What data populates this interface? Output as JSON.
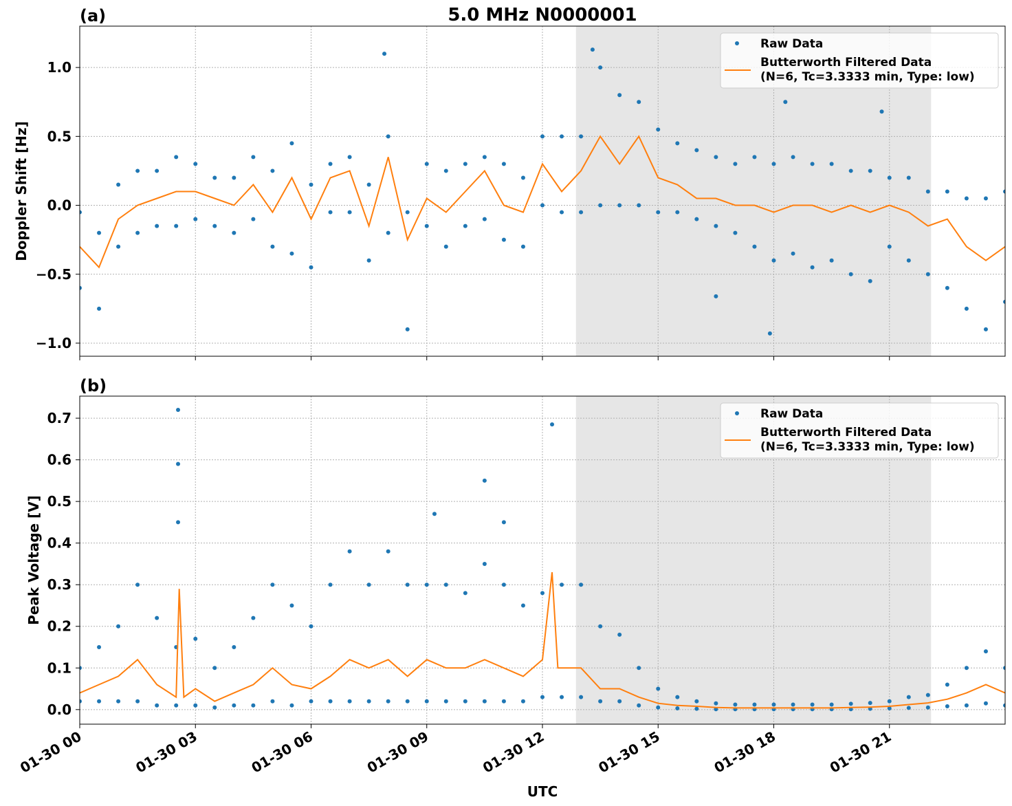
{
  "chart_data": [
    {
      "type": "line",
      "title": "5.0 MHz N0000001",
      "panel_label": "(a)",
      "ylabel": "Doppler Shift [Hz]",
      "xlim": [
        0,
        24
      ],
      "xticks": [
        0,
        3,
        6,
        9,
        12,
        15,
        18,
        21
      ],
      "ylim": [
        -1.095,
        1.3
      ],
      "yticks": [
        {
          "value": -1,
          "label": "−1.0"
        },
        {
          "value": -0.5,
          "label": "−0.5"
        },
        {
          "value": 0,
          "label": "0.0"
        },
        {
          "value": 0.5,
          "label": "0.5"
        },
        {
          "value": 1,
          "label": "1.0"
        }
      ],
      "grid": true,
      "legend": "upper right",
      "shaded_span": [
        12.87,
        22.08
      ],
      "series": [
        {
          "name": "Raw Data",
          "style": "scatter",
          "color": "#1f77b4",
          "x": [
            0,
            0.5,
            1,
            1.5,
            2,
            2.5,
            3,
            3.5,
            4,
            4.5,
            5,
            5.5,
            6,
            6.5,
            7,
            7.5,
            8,
            8.5,
            9,
            9.5,
            10,
            10.5,
            11,
            11.5,
            12,
            12.5,
            13,
            13.5,
            14,
            14.5,
            15,
            15.5,
            16,
            16.5,
            17,
            17.5,
            18,
            18.5,
            19,
            19.5,
            20,
            20.5,
            21,
            21.5,
            22,
            22.5,
            23,
            23.5,
            24,
            0,
            0.5,
            1,
            1.5,
            2,
            2.5,
            3,
            3.5,
            4,
            4.5,
            5,
            5.5,
            6,
            6.5,
            7,
            7.5,
            8,
            8.5,
            9,
            9.5,
            10,
            10.5,
            11,
            11.5,
            12,
            12.5,
            13,
            13.5,
            14,
            14.5,
            15,
            15.5,
            16,
            16.5,
            17,
            17.5,
            18,
            18.5,
            19,
            19.5,
            20,
            20.5,
            21,
            21.5,
            22,
            22.5,
            23,
            23.5,
            24,
            7.9,
            13.3,
            17.9,
            20.8,
            16.5,
            18.3
          ],
          "values": [
            -0.05,
            -0.2,
            0.15,
            0.25,
            0.25,
            0.35,
            0.3,
            0.2,
            0.2,
            0.35,
            0.25,
            0.45,
            0.15,
            0.3,
            0.35,
            0.15,
            0.5,
            -0.05,
            0.3,
            0.25,
            0.3,
            0.35,
            0.3,
            0.2,
            0.5,
            0.5,
            0.5,
            1.0,
            0.8,
            0.75,
            0.55,
            0.45,
            0.4,
            0.35,
            0.3,
            0.35,
            0.3,
            0.35,
            0.3,
            0.3,
            0.25,
            0.25,
            0.2,
            0.2,
            0.1,
            0.1,
            0.05,
            0.05,
            0.1,
            -0.6,
            -0.75,
            -0.3,
            -0.2,
            -0.15,
            -0.15,
            -0.1,
            -0.15,
            -0.2,
            -0.1,
            -0.3,
            -0.35,
            -0.45,
            -0.05,
            -0.05,
            -0.4,
            -0.2,
            -0.9,
            -0.15,
            -0.3,
            -0.15,
            -0.1,
            -0.25,
            -0.3,
            0.0,
            -0.05,
            -0.05,
            0.0,
            0.0,
            0.0,
            -0.05,
            -0.05,
            -0.1,
            -0.15,
            -0.2,
            -0.3,
            -0.4,
            -0.35,
            -0.45,
            -0.4,
            -0.5,
            -0.55,
            -0.3,
            -0.4,
            -0.5,
            -0.6,
            -0.75,
            -0.9,
            -0.7,
            1.1,
            1.13,
            -0.93,
            0.68,
            -0.66,
            0.75
          ]
        },
        {
          "name": "Butterworth Filtered Data",
          "name_detail": "(N=6, Tc=3.3333 min, Type: low)",
          "style": "line",
          "color": "#ff7f0e",
          "x": [
            0,
            0.5,
            1,
            1.5,
            2,
            2.5,
            3,
            3.5,
            4,
            4.5,
            5,
            5.5,
            6,
            6.5,
            7,
            7.5,
            8,
            8.5,
            9,
            9.5,
            10,
            10.5,
            11,
            11.5,
            12,
            12.5,
            13,
            13.5,
            14,
            14.5,
            15,
            15.5,
            16,
            16.5,
            17,
            17.5,
            18,
            18.5,
            19,
            19.5,
            20,
            20.5,
            21,
            21.5,
            22,
            22.5,
            23,
            23.5,
            24
          ],
          "values": [
            -0.3,
            -0.45,
            -0.1,
            0.0,
            0.05,
            0.1,
            0.1,
            0.05,
            0.0,
            0.15,
            -0.05,
            0.2,
            -0.1,
            0.2,
            0.25,
            -0.15,
            0.35,
            -0.25,
            0.05,
            -0.05,
            0.1,
            0.25,
            0.0,
            -0.05,
            0.3,
            0.1,
            0.25,
            0.5,
            0.3,
            0.5,
            0.2,
            0.15,
            0.05,
            0.05,
            0.0,
            0.0,
            -0.05,
            0.0,
            0.0,
            -0.05,
            0.0,
            -0.05,
            0.0,
            -0.05,
            -0.15,
            -0.1,
            -0.3,
            -0.4,
            -0.3
          ]
        }
      ]
    },
    {
      "type": "line",
      "panel_label": "(b)",
      "ylabel": "Peak Voltage [V]",
      "xlabel": "UTC",
      "xlim": [
        0,
        24
      ],
      "xticks": [
        {
          "value": 0,
          "label": "01-30 00"
        },
        {
          "value": 3,
          "label": "01-30 03"
        },
        {
          "value": 6,
          "label": "01-30 06"
        },
        {
          "value": 9,
          "label": "01-30 09"
        },
        {
          "value": 12,
          "label": "01-30 12"
        },
        {
          "value": 15,
          "label": "01-30 15"
        },
        {
          "value": 18,
          "label": "01-30 18"
        },
        {
          "value": 21,
          "label": "01-30 21"
        }
      ],
      "ylim": [
        -0.035,
        0.753
      ],
      "yticks": [
        {
          "value": 0,
          "label": "0.0"
        },
        0.1,
        0.2,
        0.3,
        0.4,
        0.5,
        0.6,
        0.7
      ],
      "grid": true,
      "legend": "upper right",
      "shaded_span": [
        12.87,
        22.08
      ],
      "series": [
        {
          "name": "Raw Data",
          "style": "scatter",
          "color": "#1f77b4",
          "x": [
            0,
            0.5,
            1,
            1.5,
            2,
            2.5,
            3,
            3.5,
            4,
            4.5,
            5,
            5.5,
            6,
            6.5,
            7,
            7.5,
            8,
            8.5,
            9,
            9.5,
            10,
            10.5,
            11,
            11.5,
            12,
            12.5,
            13,
            13.5,
            14,
            14.5,
            15,
            15.5,
            16,
            16.5,
            17,
            17.5,
            18,
            18.5,
            19,
            19.5,
            20,
            20.5,
            21,
            21.5,
            22,
            22.5,
            23,
            23.5,
            24,
            0,
            0.5,
            1,
            1.5,
            2,
            2.5,
            3,
            3.5,
            4,
            4.5,
            5,
            5.5,
            6,
            6.5,
            7,
            7.5,
            8,
            8.5,
            9,
            9.5,
            10,
            10.5,
            11,
            11.5,
            12,
            12.5,
            13,
            13.5,
            14,
            14.5,
            15,
            15.5,
            16,
            16.5,
            17,
            17.5,
            18,
            18.5,
            19,
            19.5,
            20,
            20.5,
            21,
            21.5,
            22,
            22.5,
            23,
            23.5,
            24,
            2.55,
            2.55,
            2.55,
            12.25,
            10.5,
            9.2,
            11.0
          ],
          "values": [
            0.1,
            0.15,
            0.2,
            0.3,
            0.22,
            0.15,
            0.17,
            0.1,
            0.15,
            0.22,
            0.3,
            0.25,
            0.2,
            0.3,
            0.38,
            0.3,
            0.38,
            0.3,
            0.3,
            0.3,
            0.28,
            0.35,
            0.3,
            0.25,
            0.28,
            0.3,
            0.3,
            0.2,
            0.18,
            0.1,
            0.05,
            0.03,
            0.02,
            0.015,
            0.012,
            0.012,
            0.012,
            0.012,
            0.012,
            0.012,
            0.014,
            0.016,
            0.02,
            0.03,
            0.035,
            0.06,
            0.1,
            0.14,
            0.1,
            0.02,
            0.02,
            0.02,
            0.02,
            0.01,
            0.01,
            0.01,
            0.005,
            0.01,
            0.01,
            0.02,
            0.01,
            0.02,
            0.02,
            0.02,
            0.02,
            0.02,
            0.02,
            0.02,
            0.02,
            0.02,
            0.02,
            0.02,
            0.02,
            0.03,
            0.03,
            0.03,
            0.02,
            0.02,
            0.01,
            0.005,
            0.003,
            0.002,
            0.001,
            0.001,
            0.001,
            0.001,
            0.001,
            0.001,
            0.001,
            0.001,
            0.002,
            0.003,
            0.004,
            0.005,
            0.008,
            0.01,
            0.015,
            0.01,
            0.72,
            0.59,
            0.45,
            0.685,
            0.55,
            0.47,
            0.45
          ]
        },
        {
          "name": "Butterworth Filtered Data",
          "name_detail": "(N=6, Tc=3.3333 min, Type: low)",
          "style": "line",
          "color": "#ff7f0e",
          "x": [
            0,
            0.5,
            1,
            1.5,
            2,
            2.5,
            2.58,
            2.7,
            3,
            3.5,
            4,
            4.5,
            5,
            5.5,
            6,
            6.5,
            7,
            7.5,
            8,
            8.5,
            9,
            9.5,
            10,
            10.5,
            11,
            11.5,
            12,
            12.25,
            12.4,
            12.5,
            13,
            13.5,
            14,
            14.5,
            15,
            15.5,
            16,
            16.5,
            17,
            17.5,
            18,
            18.5,
            19,
            19.5,
            20,
            20.5,
            21,
            21.5,
            22,
            22.5,
            23,
            23.5,
            24
          ],
          "values": [
            0.04,
            0.06,
            0.08,
            0.12,
            0.06,
            0.03,
            0.29,
            0.03,
            0.05,
            0.02,
            0.04,
            0.06,
            0.1,
            0.06,
            0.05,
            0.08,
            0.12,
            0.1,
            0.12,
            0.08,
            0.12,
            0.1,
            0.1,
            0.12,
            0.1,
            0.08,
            0.12,
            0.33,
            0.1,
            0.1,
            0.1,
            0.05,
            0.05,
            0.03,
            0.015,
            0.01,
            0.008,
            0.005,
            0.004,
            0.004,
            0.004,
            0.004,
            0.004,
            0.004,
            0.005,
            0.006,
            0.008,
            0.012,
            0.016,
            0.025,
            0.04,
            0.06,
            0.04
          ]
        }
      ]
    }
  ]
}
